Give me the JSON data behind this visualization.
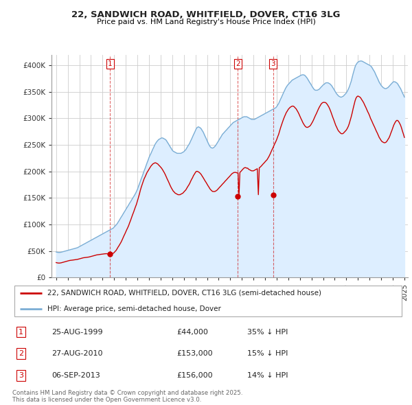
{
  "title": "22, SANDWICH ROAD, WHITFIELD, DOVER, CT16 3LG",
  "subtitle": "Price paid vs. HM Land Registry's House Price Index (HPI)",
  "legend_label_red": "22, SANDWICH ROAD, WHITFIELD, DOVER, CT16 3LG (semi-detached house)",
  "legend_label_blue": "HPI: Average price, semi-detached house, Dover",
  "footer": "Contains HM Land Registry data © Crown copyright and database right 2025.\nThis data is licensed under the Open Government Licence v3.0.",
  "transactions": [
    {
      "num": 1,
      "date": "25-AUG-1999",
      "price": 44000,
      "hpi_diff": "35% ↓ HPI",
      "year": 1999.65
    },
    {
      "num": 2,
      "date": "27-AUG-2010",
      "price": 153000,
      "hpi_diff": "15% ↓ HPI",
      "year": 2010.65
    },
    {
      "num": 3,
      "date": "06-SEP-2013",
      "price": 156000,
      "hpi_diff": "14% ↓ HPI",
      "year": 2013.69
    }
  ],
  "red_color": "#cc0000",
  "blue_color": "#7aadd4",
  "blue_fill_color": "#ddeeff",
  "dashed_color": "#cc0000",
  "bg_color": "#ffffff",
  "grid_color": "#cccccc",
  "ylim": [
    0,
    420000
  ],
  "yticks": [
    0,
    50000,
    100000,
    150000,
    200000,
    250000,
    300000,
    350000,
    400000
  ],
  "ytick_labels": [
    "£0",
    "£50K",
    "£100K",
    "£150K",
    "£200K",
    "£250K",
    "£300K",
    "£350K",
    "£400K"
  ],
  "hpi_years": [
    1995.0,
    1995.08,
    1995.17,
    1995.25,
    1995.33,
    1995.42,
    1995.5,
    1995.58,
    1995.67,
    1995.75,
    1995.83,
    1995.92,
    1996.0,
    1996.08,
    1996.17,
    1996.25,
    1996.33,
    1996.42,
    1996.5,
    1996.58,
    1996.67,
    1996.75,
    1996.83,
    1996.92,
    1997.0,
    1997.08,
    1997.17,
    1997.25,
    1997.33,
    1997.42,
    1997.5,
    1997.58,
    1997.67,
    1997.75,
    1997.83,
    1997.92,
    1998.0,
    1998.08,
    1998.17,
    1998.25,
    1998.33,
    1998.42,
    1998.5,
    1998.58,
    1998.67,
    1998.75,
    1998.83,
    1998.92,
    1999.0,
    1999.08,
    1999.17,
    1999.25,
    1999.33,
    1999.42,
    1999.5,
    1999.58,
    1999.67,
    1999.75,
    1999.83,
    1999.92,
    2000.0,
    2000.08,
    2000.17,
    2000.25,
    2000.33,
    2000.42,
    2000.5,
    2000.58,
    2000.67,
    2000.75,
    2000.83,
    2000.92,
    2001.0,
    2001.08,
    2001.17,
    2001.25,
    2001.33,
    2001.42,
    2001.5,
    2001.58,
    2001.67,
    2001.75,
    2001.83,
    2001.92,
    2002.0,
    2002.08,
    2002.17,
    2002.25,
    2002.33,
    2002.42,
    2002.5,
    2002.58,
    2002.67,
    2002.75,
    2002.83,
    2002.92,
    2003.0,
    2003.08,
    2003.17,
    2003.25,
    2003.33,
    2003.42,
    2003.5,
    2003.58,
    2003.67,
    2003.75,
    2003.83,
    2003.92,
    2004.0,
    2004.08,
    2004.17,
    2004.25,
    2004.33,
    2004.42,
    2004.5,
    2004.58,
    2004.67,
    2004.75,
    2004.83,
    2004.92,
    2005.0,
    2005.08,
    2005.17,
    2005.25,
    2005.33,
    2005.42,
    2005.5,
    2005.58,
    2005.67,
    2005.75,
    2005.83,
    2005.92,
    2006.0,
    2006.08,
    2006.17,
    2006.25,
    2006.33,
    2006.42,
    2006.5,
    2006.58,
    2006.67,
    2006.75,
    2006.83,
    2006.92,
    2007.0,
    2007.08,
    2007.17,
    2007.25,
    2007.33,
    2007.42,
    2007.5,
    2007.58,
    2007.67,
    2007.75,
    2007.83,
    2007.92,
    2008.0,
    2008.08,
    2008.17,
    2008.25,
    2008.33,
    2008.42,
    2008.5,
    2008.58,
    2008.67,
    2008.75,
    2008.83,
    2008.92,
    2009.0,
    2009.08,
    2009.17,
    2009.25,
    2009.33,
    2009.42,
    2009.5,
    2009.58,
    2009.67,
    2009.75,
    2009.83,
    2009.92,
    2010.0,
    2010.08,
    2010.17,
    2010.25,
    2010.33,
    2010.42,
    2010.5,
    2010.58,
    2010.67,
    2010.75,
    2010.83,
    2010.92,
    2011.0,
    2011.08,
    2011.17,
    2011.25,
    2011.33,
    2011.42,
    2011.5,
    2011.58,
    2011.67,
    2011.75,
    2011.83,
    2011.92,
    2012.0,
    2012.08,
    2012.17,
    2012.25,
    2012.33,
    2012.42,
    2012.5,
    2012.58,
    2012.67,
    2012.75,
    2012.83,
    2012.92,
    2013.0,
    2013.08,
    2013.17,
    2013.25,
    2013.33,
    2013.42,
    2013.5,
    2013.58,
    2013.67,
    2013.75,
    2013.83,
    2013.92,
    2014.0,
    2014.08,
    2014.17,
    2014.25,
    2014.33,
    2014.42,
    2014.5,
    2014.58,
    2014.67,
    2014.75,
    2014.83,
    2014.92,
    2015.0,
    2015.08,
    2015.17,
    2015.25,
    2015.33,
    2015.42,
    2015.5,
    2015.58,
    2015.67,
    2015.75,
    2015.83,
    2015.92,
    2016.0,
    2016.08,
    2016.17,
    2016.25,
    2016.33,
    2016.42,
    2016.5,
    2016.58,
    2016.67,
    2016.75,
    2016.83,
    2016.92,
    2017.0,
    2017.08,
    2017.17,
    2017.25,
    2017.33,
    2017.42,
    2017.5,
    2017.58,
    2017.67,
    2017.75,
    2017.83,
    2017.92,
    2018.0,
    2018.08,
    2018.17,
    2018.25,
    2018.33,
    2018.42,
    2018.5,
    2018.58,
    2018.67,
    2018.75,
    2018.83,
    2018.92,
    2019.0,
    2019.08,
    2019.17,
    2019.25,
    2019.33,
    2019.42,
    2019.5,
    2019.58,
    2019.67,
    2019.75,
    2019.83,
    2019.92,
    2020.0,
    2020.08,
    2020.17,
    2020.25,
    2020.33,
    2020.42,
    2020.5,
    2020.58,
    2020.67,
    2020.75,
    2020.83,
    2020.92,
    2021.0,
    2021.08,
    2021.17,
    2021.25,
    2021.33,
    2021.42,
    2021.5,
    2021.58,
    2021.67,
    2021.75,
    2021.83,
    2021.92,
    2022.0,
    2022.08,
    2022.17,
    2022.25,
    2022.33,
    2022.42,
    2022.5,
    2022.58,
    2022.67,
    2022.75,
    2022.83,
    2022.92,
    2023.0,
    2023.08,
    2023.17,
    2023.25,
    2023.33,
    2023.42,
    2023.5,
    2023.58,
    2023.67,
    2023.75,
    2023.83,
    2023.92,
    2024.0,
    2024.08,
    2024.17,
    2024.25,
    2024.33,
    2024.42,
    2024.5,
    2024.58,
    2024.67,
    2024.75,
    2024.83,
    2024.92,
    2025.0
  ],
  "hpi_values": [
    48000,
    47500,
    47200,
    47000,
    47200,
    47500,
    48000,
    48500,
    49000,
    49500,
    50000,
    50500,
    51000,
    51500,
    52000,
    52500,
    53000,
    53500,
    54000,
    54500,
    55000,
    55500,
    56000,
    57000,
    58000,
    59000,
    60000,
    61000,
    62000,
    63000,
    64000,
    65000,
    66000,
    67000,
    68000,
    69000,
    70000,
    71000,
    72000,
    73000,
    74000,
    75000,
    76000,
    77000,
    78000,
    79000,
    80000,
    81000,
    82000,
    83000,
    84000,
    85000,
    86000,
    87000,
    88000,
    89000,
    90000,
    91000,
    92000,
    93000,
    95000,
    97000,
    99000,
    101000,
    104000,
    107000,
    110000,
    113000,
    116000,
    119000,
    122000,
    125000,
    128000,
    131000,
    134000,
    137000,
    140000,
    143000,
    146000,
    149000,
    152000,
    155000,
    158000,
    162000,
    166000,
    171000,
    176000,
    181000,
    186000,
    191000,
    196000,
    201000,
    206000,
    211000,
    216000,
    221000,
    226000,
    230000,
    234000,
    238000,
    242000,
    246000,
    250000,
    253000,
    256000,
    258000,
    260000,
    261000,
    262000,
    263000,
    263000,
    262000,
    261000,
    260000,
    258000,
    255000,
    252000,
    249000,
    246000,
    243000,
    240000,
    238000,
    237000,
    236000,
    235000,
    234000,
    234000,
    234000,
    234000,
    234000,
    235000,
    236000,
    237000,
    239000,
    241000,
    244000,
    247000,
    250000,
    253000,
    257000,
    261000,
    265000,
    269000,
    273000,
    277000,
    281000,
    283000,
    284000,
    283000,
    282000,
    280000,
    277000,
    274000,
    270000,
    266000,
    262000,
    258000,
    254000,
    250000,
    247000,
    245000,
    244000,
    244000,
    245000,
    247000,
    249000,
    252000,
    255000,
    258000,
    261000,
    264000,
    267000,
    270000,
    272000,
    274000,
    276000,
    278000,
    280000,
    282000,
    284000,
    286000,
    288000,
    290000,
    292000,
    293000,
    294000,
    295000,
    296000,
    297000,
    298000,
    299000,
    300000,
    301000,
    302000,
    303000,
    303000,
    303000,
    303000,
    302000,
    301000,
    300000,
    299000,
    298000,
    298000,
    298000,
    298000,
    299000,
    300000,
    301000,
    302000,
    303000,
    304000,
    305000,
    306000,
    307000,
    308000,
    309000,
    310000,
    311000,
    312000,
    313000,
    314000,
    315000,
    316000,
    317000,
    318000,
    319000,
    320000,
    322000,
    325000,
    328000,
    332000,
    336000,
    340000,
    344000,
    348000,
    352000,
    356000,
    359000,
    362000,
    364000,
    366000,
    368000,
    370000,
    372000,
    373000,
    374000,
    375000,
    376000,
    377000,
    378000,
    379000,
    380000,
    381000,
    382000,
    382000,
    382000,
    381000,
    379000,
    377000,
    374000,
    371000,
    368000,
    365000,
    362000,
    359000,
    356000,
    354000,
    353000,
    353000,
    353000,
    354000,
    355000,
    357000,
    359000,
    361000,
    363000,
    364000,
    366000,
    367000,
    367000,
    367000,
    366000,
    365000,
    363000,
    361000,
    358000,
    355000,
    352000,
    349000,
    346000,
    344000,
    342000,
    341000,
    340000,
    340000,
    341000,
    342000,
    344000,
    346000,
    348000,
    351000,
    355000,
    359000,
    364000,
    370000,
    377000,
    384000,
    391000,
    397000,
    401000,
    404000,
    406000,
    407000,
    408000,
    408000,
    408000,
    407000,
    406000,
    405000,
    404000,
    403000,
    402000,
    401000,
    400000,
    399000,
    397000,
    394000,
    391000,
    388000,
    384000,
    380000,
    376000,
    372000,
    368000,
    365000,
    362000,
    360000,
    358000,
    357000,
    356000,
    356000,
    357000,
    358000,
    360000,
    362000,
    364000,
    366000,
    368000,
    369000,
    369000,
    368000,
    367000,
    365000,
    362000,
    359000,
    356000,
    352000,
    348000,
    344000,
    340000
  ],
  "red_years": [
    1995.0,
    1995.08,
    1995.17,
    1995.25,
    1995.33,
    1995.42,
    1995.5,
    1995.58,
    1995.67,
    1995.75,
    1995.83,
    1995.92,
    1996.0,
    1996.08,
    1996.17,
    1996.25,
    1996.33,
    1996.42,
    1996.5,
    1996.58,
    1996.67,
    1996.75,
    1996.83,
    1996.92,
    1997.0,
    1997.08,
    1997.17,
    1997.25,
    1997.33,
    1997.42,
    1997.5,
    1997.58,
    1997.67,
    1997.75,
    1997.83,
    1997.92,
    1998.0,
    1998.08,
    1998.17,
    1998.25,
    1998.33,
    1998.42,
    1998.5,
    1998.58,
    1998.67,
    1998.75,
    1998.83,
    1998.92,
    1999.0,
    1999.08,
    1999.17,
    1999.25,
    1999.33,
    1999.42,
    1999.5,
    1999.58,
    1999.67,
    1999.75,
    1999.83,
    1999.92,
    2000.0,
    2000.08,
    2000.17,
    2000.25,
    2000.33,
    2000.42,
    2000.5,
    2000.58,
    2000.67,
    2000.75,
    2000.83,
    2000.92,
    2001.0,
    2001.08,
    2001.17,
    2001.25,
    2001.33,
    2001.42,
    2001.5,
    2001.58,
    2001.67,
    2001.75,
    2001.83,
    2001.92,
    2002.0,
    2002.08,
    2002.17,
    2002.25,
    2002.33,
    2002.42,
    2002.5,
    2002.58,
    2002.67,
    2002.75,
    2002.83,
    2002.92,
    2003.0,
    2003.08,
    2003.17,
    2003.25,
    2003.33,
    2003.42,
    2003.5,
    2003.58,
    2003.67,
    2003.75,
    2003.83,
    2003.92,
    2004.0,
    2004.08,
    2004.17,
    2004.25,
    2004.33,
    2004.42,
    2004.5,
    2004.58,
    2004.67,
    2004.75,
    2004.83,
    2004.92,
    2005.0,
    2005.08,
    2005.17,
    2005.25,
    2005.33,
    2005.42,
    2005.5,
    2005.58,
    2005.67,
    2005.75,
    2005.83,
    2005.92,
    2006.0,
    2006.08,
    2006.17,
    2006.25,
    2006.33,
    2006.42,
    2006.5,
    2006.58,
    2006.67,
    2006.75,
    2006.83,
    2006.92,
    2007.0,
    2007.08,
    2007.17,
    2007.25,
    2007.33,
    2007.42,
    2007.5,
    2007.58,
    2007.67,
    2007.75,
    2007.83,
    2007.92,
    2008.0,
    2008.08,
    2008.17,
    2008.25,
    2008.33,
    2008.42,
    2008.5,
    2008.58,
    2008.67,
    2008.75,
    2008.83,
    2008.92,
    2009.0,
    2009.08,
    2009.17,
    2009.25,
    2009.33,
    2009.42,
    2009.5,
    2009.58,
    2009.67,
    2009.75,
    2009.83,
    2009.92,
    2010.0,
    2010.08,
    2010.17,
    2010.25,
    2010.33,
    2010.42,
    2010.5,
    2010.58,
    2010.67,
    2010.75,
    2010.83,
    2010.92,
    2011.0,
    2011.08,
    2011.17,
    2011.25,
    2011.33,
    2011.42,
    2011.5,
    2011.58,
    2011.67,
    2011.75,
    2011.83,
    2011.92,
    2012.0,
    2012.08,
    2012.17,
    2012.25,
    2012.33,
    2012.42,
    2012.5,
    2012.58,
    2012.67,
    2012.75,
    2012.83,
    2012.92,
    2013.0,
    2013.08,
    2013.17,
    2013.25,
    2013.33,
    2013.42,
    2013.5,
    2013.58,
    2013.67,
    2013.75,
    2013.83,
    2013.92,
    2014.0,
    2014.08,
    2014.17,
    2014.25,
    2014.33,
    2014.42,
    2014.5,
    2014.58,
    2014.67,
    2014.75,
    2014.83,
    2014.92,
    2015.0,
    2015.08,
    2015.17,
    2015.25,
    2015.33,
    2015.42,
    2015.5,
    2015.58,
    2015.67,
    2015.75,
    2015.83,
    2015.92,
    2016.0,
    2016.08,
    2016.17,
    2016.25,
    2016.33,
    2016.42,
    2016.5,
    2016.58,
    2016.67,
    2016.75,
    2016.83,
    2016.92,
    2017.0,
    2017.08,
    2017.17,
    2017.25,
    2017.33,
    2017.42,
    2017.5,
    2017.58,
    2017.67,
    2017.75,
    2017.83,
    2017.92,
    2018.0,
    2018.08,
    2018.17,
    2018.25,
    2018.33,
    2018.42,
    2018.5,
    2018.58,
    2018.67,
    2018.75,
    2018.83,
    2018.92,
    2019.0,
    2019.08,
    2019.17,
    2019.25,
    2019.33,
    2019.42,
    2019.5,
    2019.58,
    2019.67,
    2019.75,
    2019.83,
    2019.92,
    2020.0,
    2020.08,
    2020.17,
    2020.25,
    2020.33,
    2020.42,
    2020.5,
    2020.58,
    2020.67,
    2020.75,
    2020.83,
    2020.92,
    2021.0,
    2021.08,
    2021.17,
    2021.25,
    2021.33,
    2021.42,
    2021.5,
    2021.58,
    2021.67,
    2021.75,
    2021.83,
    2021.92,
    2022.0,
    2022.08,
    2022.17,
    2022.25,
    2022.33,
    2022.42,
    2022.5,
    2022.58,
    2022.67,
    2022.75,
    2022.83,
    2022.92,
    2023.0,
    2023.08,
    2023.17,
    2023.25,
    2023.33,
    2023.42,
    2023.5,
    2023.58,
    2023.67,
    2023.75,
    2023.83,
    2023.92,
    2024.0,
    2024.08,
    2024.17,
    2024.25,
    2024.33,
    2024.42,
    2024.5,
    2024.58,
    2024.67,
    2024.75,
    2024.83,
    2024.92,
    2025.0
  ],
  "red_values": [
    28000,
    27500,
    27200,
    27000,
    27200,
    27500,
    28000,
    28500,
    29000,
    29500,
    30000,
    30500,
    31000,
    31500,
    32000,
    32200,
    32500,
    32700,
    33000,
    33200,
    33500,
    33700,
    34000,
    34500,
    35000,
    35500,
    36000,
    36500,
    37000,
    37200,
    37500,
    37800,
    38000,
    38200,
    38500,
    39000,
    39500,
    40000,
    40500,
    41000,
    41500,
    42000,
    42500,
    42800,
    43000,
    43200,
    43500,
    43800,
    44000,
    44200,
    44500,
    44700,
    44800,
    44500,
    44200,
    44000,
    44000,
    44500,
    45000,
    45500,
    47000,
    49000,
    51000,
    54000,
    57000,
    60000,
    63000,
    66000,
    70000,
    74000,
    78000,
    82000,
    86000,
    90000,
    94000,
    98000,
    103000,
    108000,
    113000,
    118000,
    123000,
    128000,
    133000,
    138000,
    144000,
    150000,
    157000,
    164000,
    170000,
    176000,
    181000,
    186000,
    190000,
    194000,
    198000,
    201000,
    204000,
    207000,
    210000,
    212000,
    214000,
    215000,
    216000,
    216000,
    215000,
    214000,
    212000,
    210000,
    208000,
    206000,
    203000,
    200000,
    197000,
    193000,
    189000,
    185000,
    181000,
    177000,
    173000,
    169000,
    166000,
    163000,
    161000,
    159000,
    158000,
    157000,
    156000,
    156000,
    156000,
    157000,
    158000,
    159000,
    161000,
    163000,
    165000,
    168000,
    171000,
    174000,
    177000,
    181000,
    185000,
    188000,
    192000,
    195000,
    198000,
    200000,
    200000,
    199000,
    198000,
    196000,
    194000,
    191000,
    188000,
    185000,
    182000,
    179000,
    176000,
    173000,
    170000,
    167000,
    165000,
    163000,
    162000,
    162000,
    162000,
    163000,
    164000,
    166000,
    168000,
    170000,
    172000,
    174000,
    176000,
    178000,
    180000,
    182000,
    184000,
    186000,
    188000,
    190000,
    192000,
    194000,
    196000,
    197000,
    198000,
    198000,
    198000,
    197000,
    197000,
    153000,
    198000,
    200000,
    202000,
    204000,
    206000,
    207000,
    207000,
    206000,
    206000,
    204000,
    203000,
    202000,
    201000,
    201000,
    201000,
    202000,
    203000,
    204000,
    205000,
    156000,
    207000,
    208000,
    210000,
    212000,
    214000,
    216000,
    218000,
    220000,
    222000,
    225000,
    228000,
    232000,
    236000,
    240000,
    244000,
    248000,
    252000,
    256000,
    260000,
    265000,
    270000,
    276000,
    282000,
    288000,
    293000,
    298000,
    303000,
    307000,
    311000,
    314000,
    317000,
    319000,
    321000,
    322000,
    323000,
    323000,
    322000,
    320000,
    318000,
    315000,
    312000,
    308000,
    304000,
    300000,
    296000,
    292000,
    289000,
    286000,
    284000,
    283000,
    283000,
    284000,
    285000,
    287000,
    290000,
    293000,
    297000,
    301000,
    305000,
    309000,
    313000,
    317000,
    321000,
    324000,
    327000,
    329000,
    330000,
    330000,
    330000,
    329000,
    327000,
    324000,
    321000,
    317000,
    312000,
    307000,
    302000,
    297000,
    292000,
    287000,
    283000,
    279000,
    276000,
    274000,
    272000,
    271000,
    271000,
    272000,
    274000,
    276000,
    278000,
    281000,
    285000,
    290000,
    296000,
    303000,
    310000,
    318000,
    326000,
    333000,
    338000,
    341000,
    342000,
    341000,
    340000,
    338000,
    335000,
    332000,
    329000,
    325000,
    321000,
    317000,
    313000,
    309000,
    305000,
    300000,
    296000,
    292000,
    288000,
    284000,
    280000,
    276000,
    272000,
    268000,
    264000,
    261000,
    258000,
    256000,
    255000,
    254000,
    254000,
    255000,
    257000,
    260000,
    263000,
    267000,
    272000,
    277000,
    282000,
    287000,
    291000,
    294000,
    296000,
    296000,
    294000,
    291000,
    287000,
    282000,
    276000,
    270000,
    264000
  ]
}
